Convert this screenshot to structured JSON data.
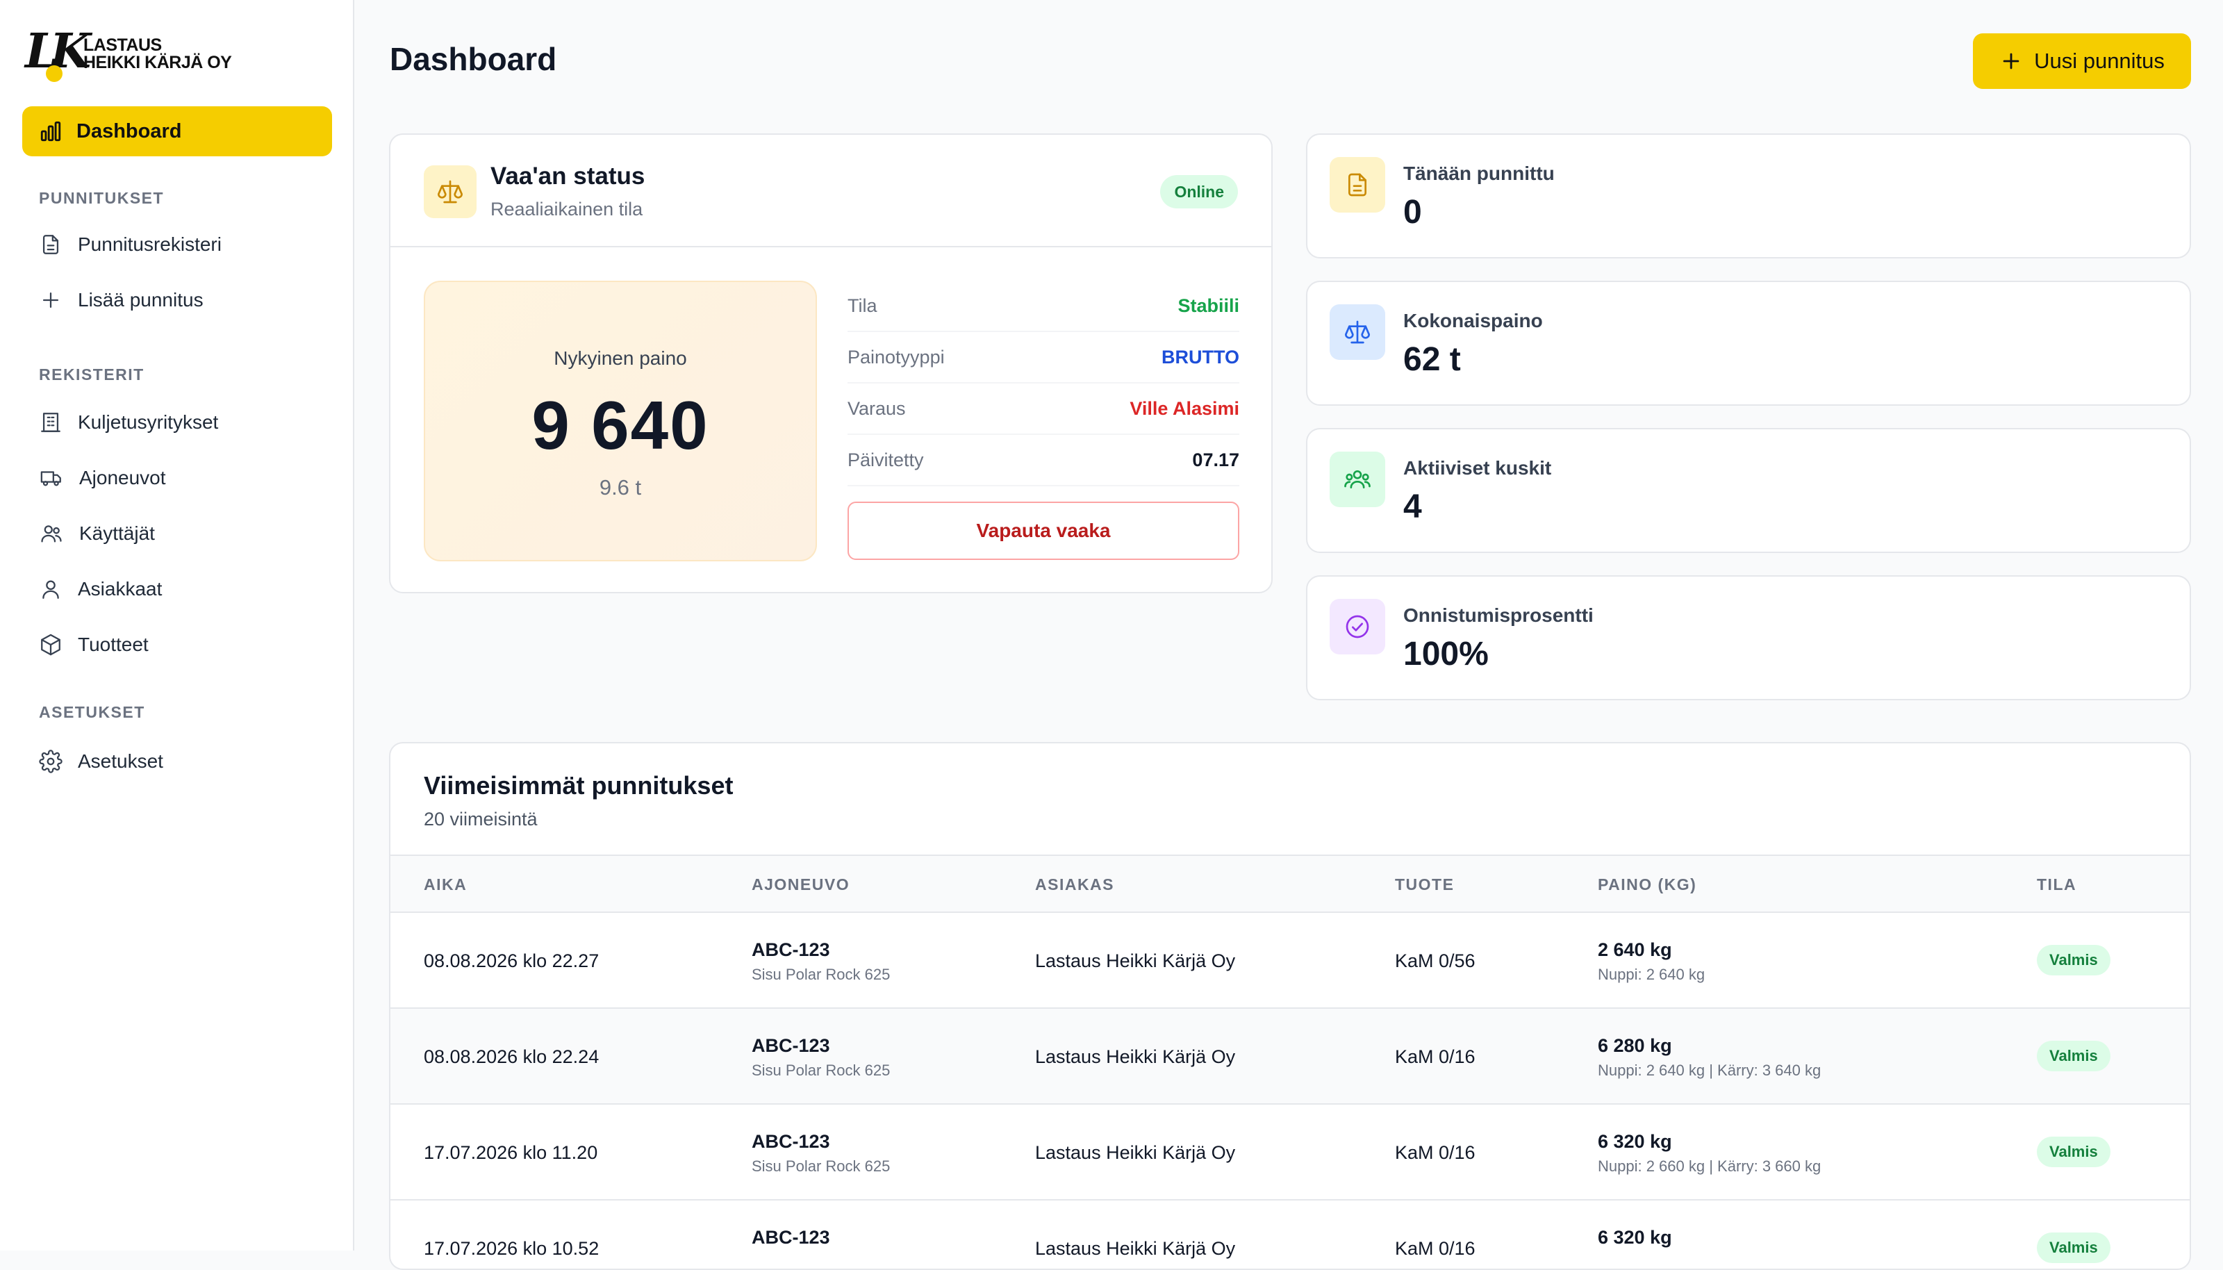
{
  "brand": {
    "logo_mark": "LK",
    "line1": "LASTAUS",
    "line2": "HEIKKI KÄRJÄ OY"
  },
  "sidebar": {
    "active": {
      "label": "Dashboard",
      "icon": "bar-chart-icon"
    },
    "sections": [
      {
        "title": "PUNNITUKSET",
        "items": [
          {
            "label": "Punnitusrekisteri",
            "icon": "document-icon"
          },
          {
            "label": "Lisää punnitus",
            "icon": "plus-icon"
          }
        ]
      },
      {
        "title": "REKISTERIT",
        "items": [
          {
            "label": "Kuljetusyritykset",
            "icon": "building-icon"
          },
          {
            "label": "Ajoneuvot",
            "icon": "truck-icon"
          },
          {
            "label": "Käyttäjät",
            "icon": "users-icon"
          },
          {
            "label": "Asiakkaat",
            "icon": "user-icon"
          },
          {
            "label": "Tuotteet",
            "icon": "box-icon"
          }
        ]
      },
      {
        "title": "ASETUKSET",
        "items": [
          {
            "label": "Asetukset",
            "icon": "gear-icon"
          }
        ]
      }
    ]
  },
  "header": {
    "title": "Dashboard",
    "new_button": "Uusi punnitus"
  },
  "scale": {
    "title": "Vaa'an status",
    "subtitle": "Reaaliaikainen tila",
    "badge": "Online",
    "weight_label": "Nykyinen paino",
    "weight_value": "9 640",
    "weight_tons": "9.6 t",
    "rows": [
      {
        "key": "Tila",
        "value": "Stabiili",
        "color": "#16a34a"
      },
      {
        "key": "Painotyyppi",
        "value": "BRUTTO",
        "color": "#1d4ed8"
      },
      {
        "key": "Varaus",
        "value": "Ville Alasimi",
        "color": "#dc2626"
      },
      {
        "key": "Päivitetty",
        "value": "07.17",
        "color": "#111827"
      }
    ],
    "release_button": "Vapauta vaaka"
  },
  "stats": [
    {
      "label": "Tänään punnittu",
      "value": "0",
      "icon": "document-icon",
      "bg": "#fef3c7",
      "fg": "#ca8a04"
    },
    {
      "label": "Kokonaispaino",
      "value": "62 t",
      "icon": "scale-icon",
      "bg": "#dbeafe",
      "fg": "#2563eb"
    },
    {
      "label": "Aktiiviset kuskit",
      "value": "4",
      "icon": "users-icon",
      "bg": "#dcfce7",
      "fg": "#16a34a"
    },
    {
      "label": "Onnistumisprosentti",
      "value": "100%",
      "icon": "check-circle-icon",
      "bg": "#f3e8ff",
      "fg": "#9333ea"
    }
  ],
  "recent": {
    "title": "Viimeisimmät punnitukset",
    "subtitle": "20 viimeisintä",
    "columns": [
      "AIKA",
      "AJONEUVO",
      "ASIAKAS",
      "TUOTE",
      "PAINO (KG)",
      "TILA"
    ],
    "rows": [
      {
        "time": "08.08.2026 klo 22.27",
        "plate": "ABC-123",
        "model": "Sisu Polar Rock 625",
        "customer": "Lastaus Heikki Kärjä Oy",
        "product": "KaM 0/56",
        "weight": "2 640 kg",
        "detail": "Nuppi: 2 640 kg",
        "status": "Valmis"
      },
      {
        "time": "08.08.2026 klo 22.24",
        "plate": "ABC-123",
        "model": "Sisu Polar Rock 625",
        "customer": "Lastaus Heikki Kärjä Oy",
        "product": "KaM 0/16",
        "weight": "6 280 kg",
        "detail": "Nuppi: 2 640 kg | Kärry: 3 640 kg",
        "status": "Valmis"
      },
      {
        "time": "17.07.2026 klo 11.20",
        "plate": "ABC-123",
        "model": "Sisu Polar Rock 625",
        "customer": "Lastaus Heikki Kärjä Oy",
        "product": "KaM 0/16",
        "weight": "6 320 kg",
        "detail": "Nuppi: 2 660 kg | Kärry: 3 660 kg",
        "status": "Valmis"
      },
      {
        "time": "17.07.2026 klo 10.52",
        "plate": "ABC-123",
        "model": "",
        "customer": "Lastaus Heikki Kärjä Oy",
        "product": "KaM 0/16",
        "weight": "6 320 kg",
        "detail": "",
        "status": "Valmis"
      }
    ]
  },
  "colors": {
    "accent": "#f5cd00",
    "border": "#e5e7eb",
    "success_bg": "#dcfce7",
    "success_fg": "#15803d"
  }
}
